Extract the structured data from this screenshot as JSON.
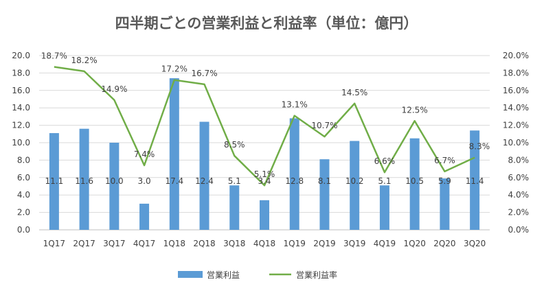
{
  "chart_data": {
    "type": "bar+line",
    "title": "四半期ごとの営業利益と利益率（単位：億円）",
    "categories": [
      "1Q17",
      "2Q17",
      "3Q17",
      "4Q17",
      "1Q18",
      "2Q18",
      "3Q18",
      "4Q18",
      "1Q19",
      "2Q19",
      "3Q19",
      "4Q19",
      "1Q20",
      "2Q20",
      "3Q20"
    ],
    "series": [
      {
        "name": "営業利益",
        "type": "bar",
        "axis": "left",
        "color": "#5B9BD5",
        "values": [
          11.1,
          11.6,
          10.0,
          3.0,
          17.4,
          12.4,
          5.1,
          3.4,
          12.8,
          8.1,
          10.2,
          5.1,
          10.5,
          5.9,
          11.4
        ],
        "labels": [
          "11.1",
          "11.6",
          "10.0",
          "3.0",
          "17.4",
          "12.4",
          "5.1",
          "3.4",
          "12.8",
          "8.1",
          "10.2",
          "5.1",
          "10.5",
          "5.9",
          "11.4"
        ]
      },
      {
        "name": "営業利益率",
        "type": "line",
        "axis": "right",
        "color": "#70AD47",
        "values": [
          18.7,
          18.2,
          14.9,
          7.4,
          17.2,
          16.7,
          8.5,
          5.1,
          13.1,
          10.7,
          14.5,
          6.6,
          12.5,
          6.7,
          8.3
        ],
        "labels": [
          "18.7%",
          "18.2%",
          "14.9%",
          "7.4%",
          "17.2%",
          "16.7%",
          "8.5%",
          "5.1%",
          "13.1%",
          "10.7%",
          "14.5%",
          "6.6%",
          "12.5%",
          "6.7%",
          "8.3%"
        ]
      }
    ],
    "y_left": {
      "min": 0,
      "max": 20,
      "step": 2,
      "ticks": [
        "0.0",
        "2.0",
        "4.0",
        "6.0",
        "8.0",
        "10.0",
        "12.0",
        "14.0",
        "16.0",
        "18.0",
        "20.0"
      ]
    },
    "y_right": {
      "min": 0,
      "max": 20,
      "step": 2,
      "ticks": [
        "0.0%",
        "2.0%",
        "4.0%",
        "6.0%",
        "8.0%",
        "10.0%",
        "12.0%",
        "14.0%",
        "16.0%",
        "18.0%",
        "20.0%"
      ]
    },
    "grid": true,
    "legend": "bottom-center"
  }
}
